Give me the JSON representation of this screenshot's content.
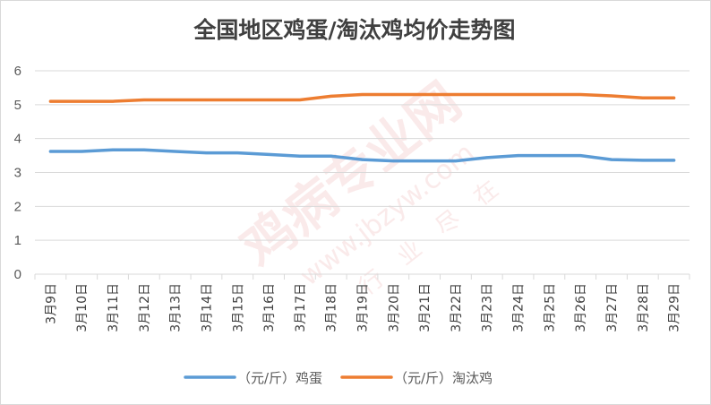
{
  "chart_data": {
    "type": "line",
    "title": "全国地区鸡蛋/淘汰鸡均价走势图",
    "xlabel": "",
    "ylabel": "",
    "ylim": [
      0,
      6
    ],
    "yticks": [
      "0",
      "1",
      "2",
      "3",
      "4",
      "5",
      "6"
    ],
    "grid": true,
    "legend": "bottom",
    "categories": [
      "3月9日",
      "3月10日",
      "3月11日",
      "3月12日",
      "3月13日",
      "3月14日",
      "3月15日",
      "3月16日",
      "3月17日",
      "3月18日",
      "3月19日",
      "3月20日",
      "3月21日",
      "3月22日",
      "3月23日",
      "3月24日",
      "3月25日",
      "3月26日",
      "3月27日",
      "3月28日",
      "3月29日"
    ],
    "series": [
      {
        "name": "（元/斤）鸡蛋",
        "color": "#5b9bd5",
        "values": [
          3.62,
          3.62,
          3.67,
          3.67,
          3.62,
          3.58,
          3.58,
          3.53,
          3.48,
          3.48,
          3.38,
          3.34,
          3.34,
          3.34,
          3.44,
          3.5,
          3.5,
          3.5,
          3.38,
          3.36,
          3.36
        ]
      },
      {
        "name": "（元/斤）淘汰鸡",
        "color": "#ed7d31",
        "values": [
          5.1,
          5.1,
          5.1,
          5.14,
          5.14,
          5.14,
          5.14,
          5.14,
          5.14,
          5.25,
          5.3,
          5.3,
          5.3,
          5.3,
          5.3,
          5.3,
          5.3,
          5.3,
          5.26,
          5.2,
          5.2
        ]
      }
    ]
  },
  "watermark": {
    "main": "鸡病专业网",
    "url": "www.jbzyw.com",
    "motto": "行业尽在"
  }
}
